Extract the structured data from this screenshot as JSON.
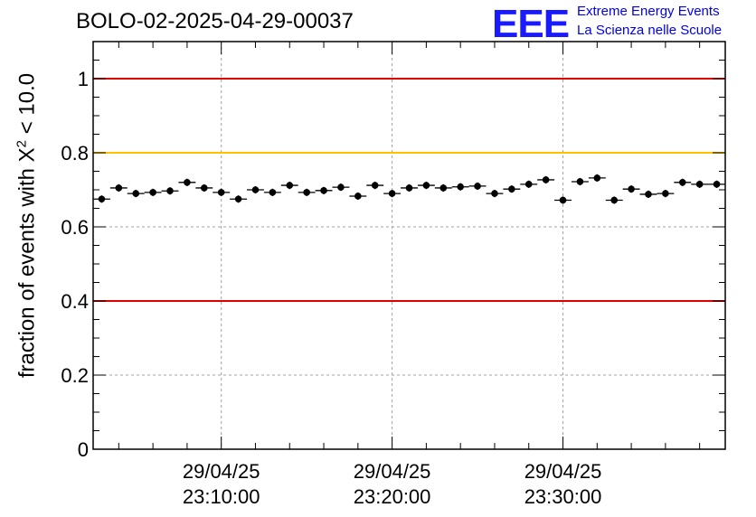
{
  "header": {
    "title": "BOLO-02-2025-04-29-00037",
    "logo_text": "EEE",
    "logo_line1": "Extreme Energy Events",
    "logo_line2": "La Scienza nelle Scuole"
  },
  "chart_data": {
    "type": "scatter",
    "title": "BOLO-02-2025-04-29-00037",
    "xlabel": "",
    "ylabel": "fraction of events with X² < 10.0",
    "ylabel_parts": {
      "pre": "fraction of events with X",
      "sup": "2",
      "post": " < 10.0"
    },
    "ylim": [
      0,
      1.1
    ],
    "y_ticks": [
      "0",
      "0.2",
      "0.4",
      "0.6",
      "0.8",
      "1"
    ],
    "y_tick_values": [
      0,
      0.2,
      0.4,
      0.6,
      0.8,
      1.0
    ],
    "xlim_minutes": [
      0,
      37
    ],
    "x_ticks": [
      {
        "date": "29/04/25",
        "time": "23:10:00",
        "minute": 7.5
      },
      {
        "date": "29/04/25",
        "time": "23:20:00",
        "minute": 17.5
      },
      {
        "date": "29/04/25",
        "time": "23:30:00",
        "minute": 27.5
      }
    ],
    "grid": true,
    "reference_lines": [
      {
        "y": 1.0,
        "color": "#e00000"
      },
      {
        "y": 0.8,
        "color": "#ffc000"
      },
      {
        "y": 0.4,
        "color": "#e00000"
      }
    ],
    "series": [
      {
        "name": "fraction",
        "x_minutes": [
          0.5,
          1.5,
          2.5,
          3.5,
          4.5,
          5.5,
          6.5,
          7.5,
          8.5,
          9.5,
          10.5,
          11.5,
          12.5,
          13.5,
          14.5,
          15.5,
          16.5,
          17.5,
          18.5,
          19.5,
          20.5,
          21.5,
          22.5,
          23.5,
          24.5,
          25.5,
          26.5,
          27.5,
          28.5,
          29.5,
          30.5,
          31.5,
          32.5,
          33.5,
          34.5,
          35.5,
          36.5
        ],
        "values": [
          0.675,
          0.705,
          0.69,
          0.693,
          0.697,
          0.72,
          0.705,
          0.693,
          0.675,
          0.7,
          0.693,
          0.712,
          0.693,
          0.698,
          0.707,
          0.683,
          0.712,
          0.69,
          0.705,
          0.712,
          0.705,
          0.708,
          0.71,
          0.69,
          0.702,
          0.715,
          0.727,
          0.672,
          0.722,
          0.732,
          0.672,
          0.702,
          0.688,
          0.69,
          0.72,
          0.715,
          0.715
        ],
        "errors": [
          0.01,
          0.01,
          0.01,
          0.01,
          0.01,
          0.01,
          0.01,
          0.01,
          0.01,
          0.01,
          0.01,
          0.01,
          0.01,
          0.01,
          0.01,
          0.01,
          0.01,
          0.01,
          0.01,
          0.01,
          0.01,
          0.01,
          0.01,
          0.01,
          0.01,
          0.01,
          0.01,
          0.01,
          0.01,
          0.01,
          0.01,
          0.01,
          0.01,
          0.01,
          0.01,
          0.01,
          0.01
        ]
      }
    ]
  }
}
